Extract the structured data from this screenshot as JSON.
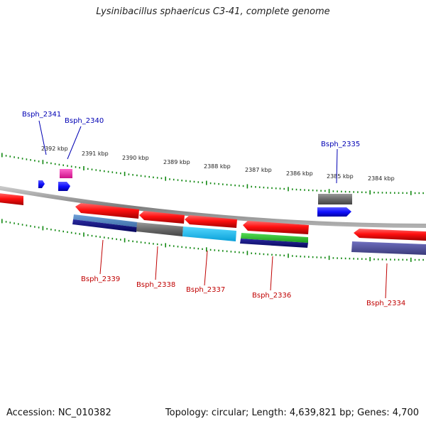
{
  "title": "Lysinibacillus sphaericus C3-41, complete genome",
  "footer": {
    "accession": "Accession: NC_010382",
    "summary": "Topology: circular; Length: 4,639,821 bp; Genes: 4,700"
  },
  "colors": {
    "forward_label": "#0000b4",
    "reverse_label": "#c00000",
    "backbone": "#8c8c8c",
    "tick": "#118811",
    "scale_text": "#222222"
  },
  "scale_labels": [
    "2392 kbp",
    "2391 kbp",
    "2390 kbp",
    "2389 kbp",
    "2388 kbp",
    "2387 kbp",
    "2386 kbp",
    "2385 kbp",
    "2384 kbp"
  ],
  "forward_genes": [
    "Bsph_2341",
    "Bsph_2340",
    "Bsph_2335"
  ],
  "reverse_genes": [
    "Bsph_2339",
    "Bsph_2338",
    "Bsph_2337",
    "Bsph_2336",
    "Bsph_2334"
  ]
}
